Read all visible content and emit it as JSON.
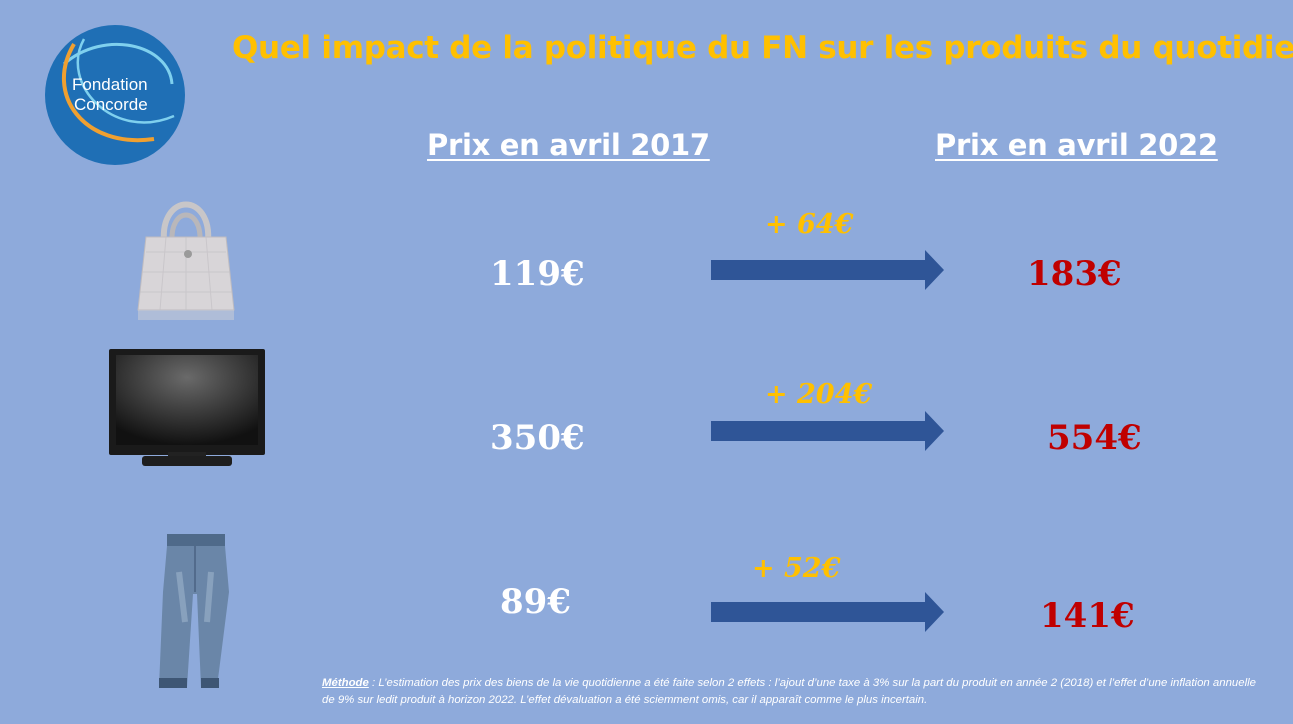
{
  "logo": {
    "line1": "Fondation",
    "line2": "Concorde"
  },
  "title": "Quel impact de la politique du FN sur les produits du quotidien?",
  "columns": {
    "left": "Prix en avril 2017",
    "right": "Prix en avril 2022"
  },
  "rows": [
    {
      "icon": "handbag-icon",
      "old": "119€",
      "delta": "+ 64€",
      "new": "183€"
    },
    {
      "icon": "tv-icon",
      "old": "350€",
      "delta": "+ 204€",
      "new": "554€"
    },
    {
      "icon": "jeans-icon",
      "old": "89€",
      "delta": "+ 52€",
      "new": "141€"
    }
  ],
  "methode": {
    "label": "Méthode",
    "text": " : L’estimation des prix des biens de la vie quotidienne a été faite selon 2 effets : l’ajout d’une taxe à 3% sur la part du produit en année 2 (2018) et l’effet d’une inflation annuelle de 9% sur ledit produit à horizon 2022. L’effet dévaluation a été sciemment omis, car il apparaît comme le plus incertain."
  },
  "colors": {
    "background": "#8eaadb",
    "title": "#ffc000",
    "new_price": "#c00000",
    "arrow": "#2f5597"
  }
}
